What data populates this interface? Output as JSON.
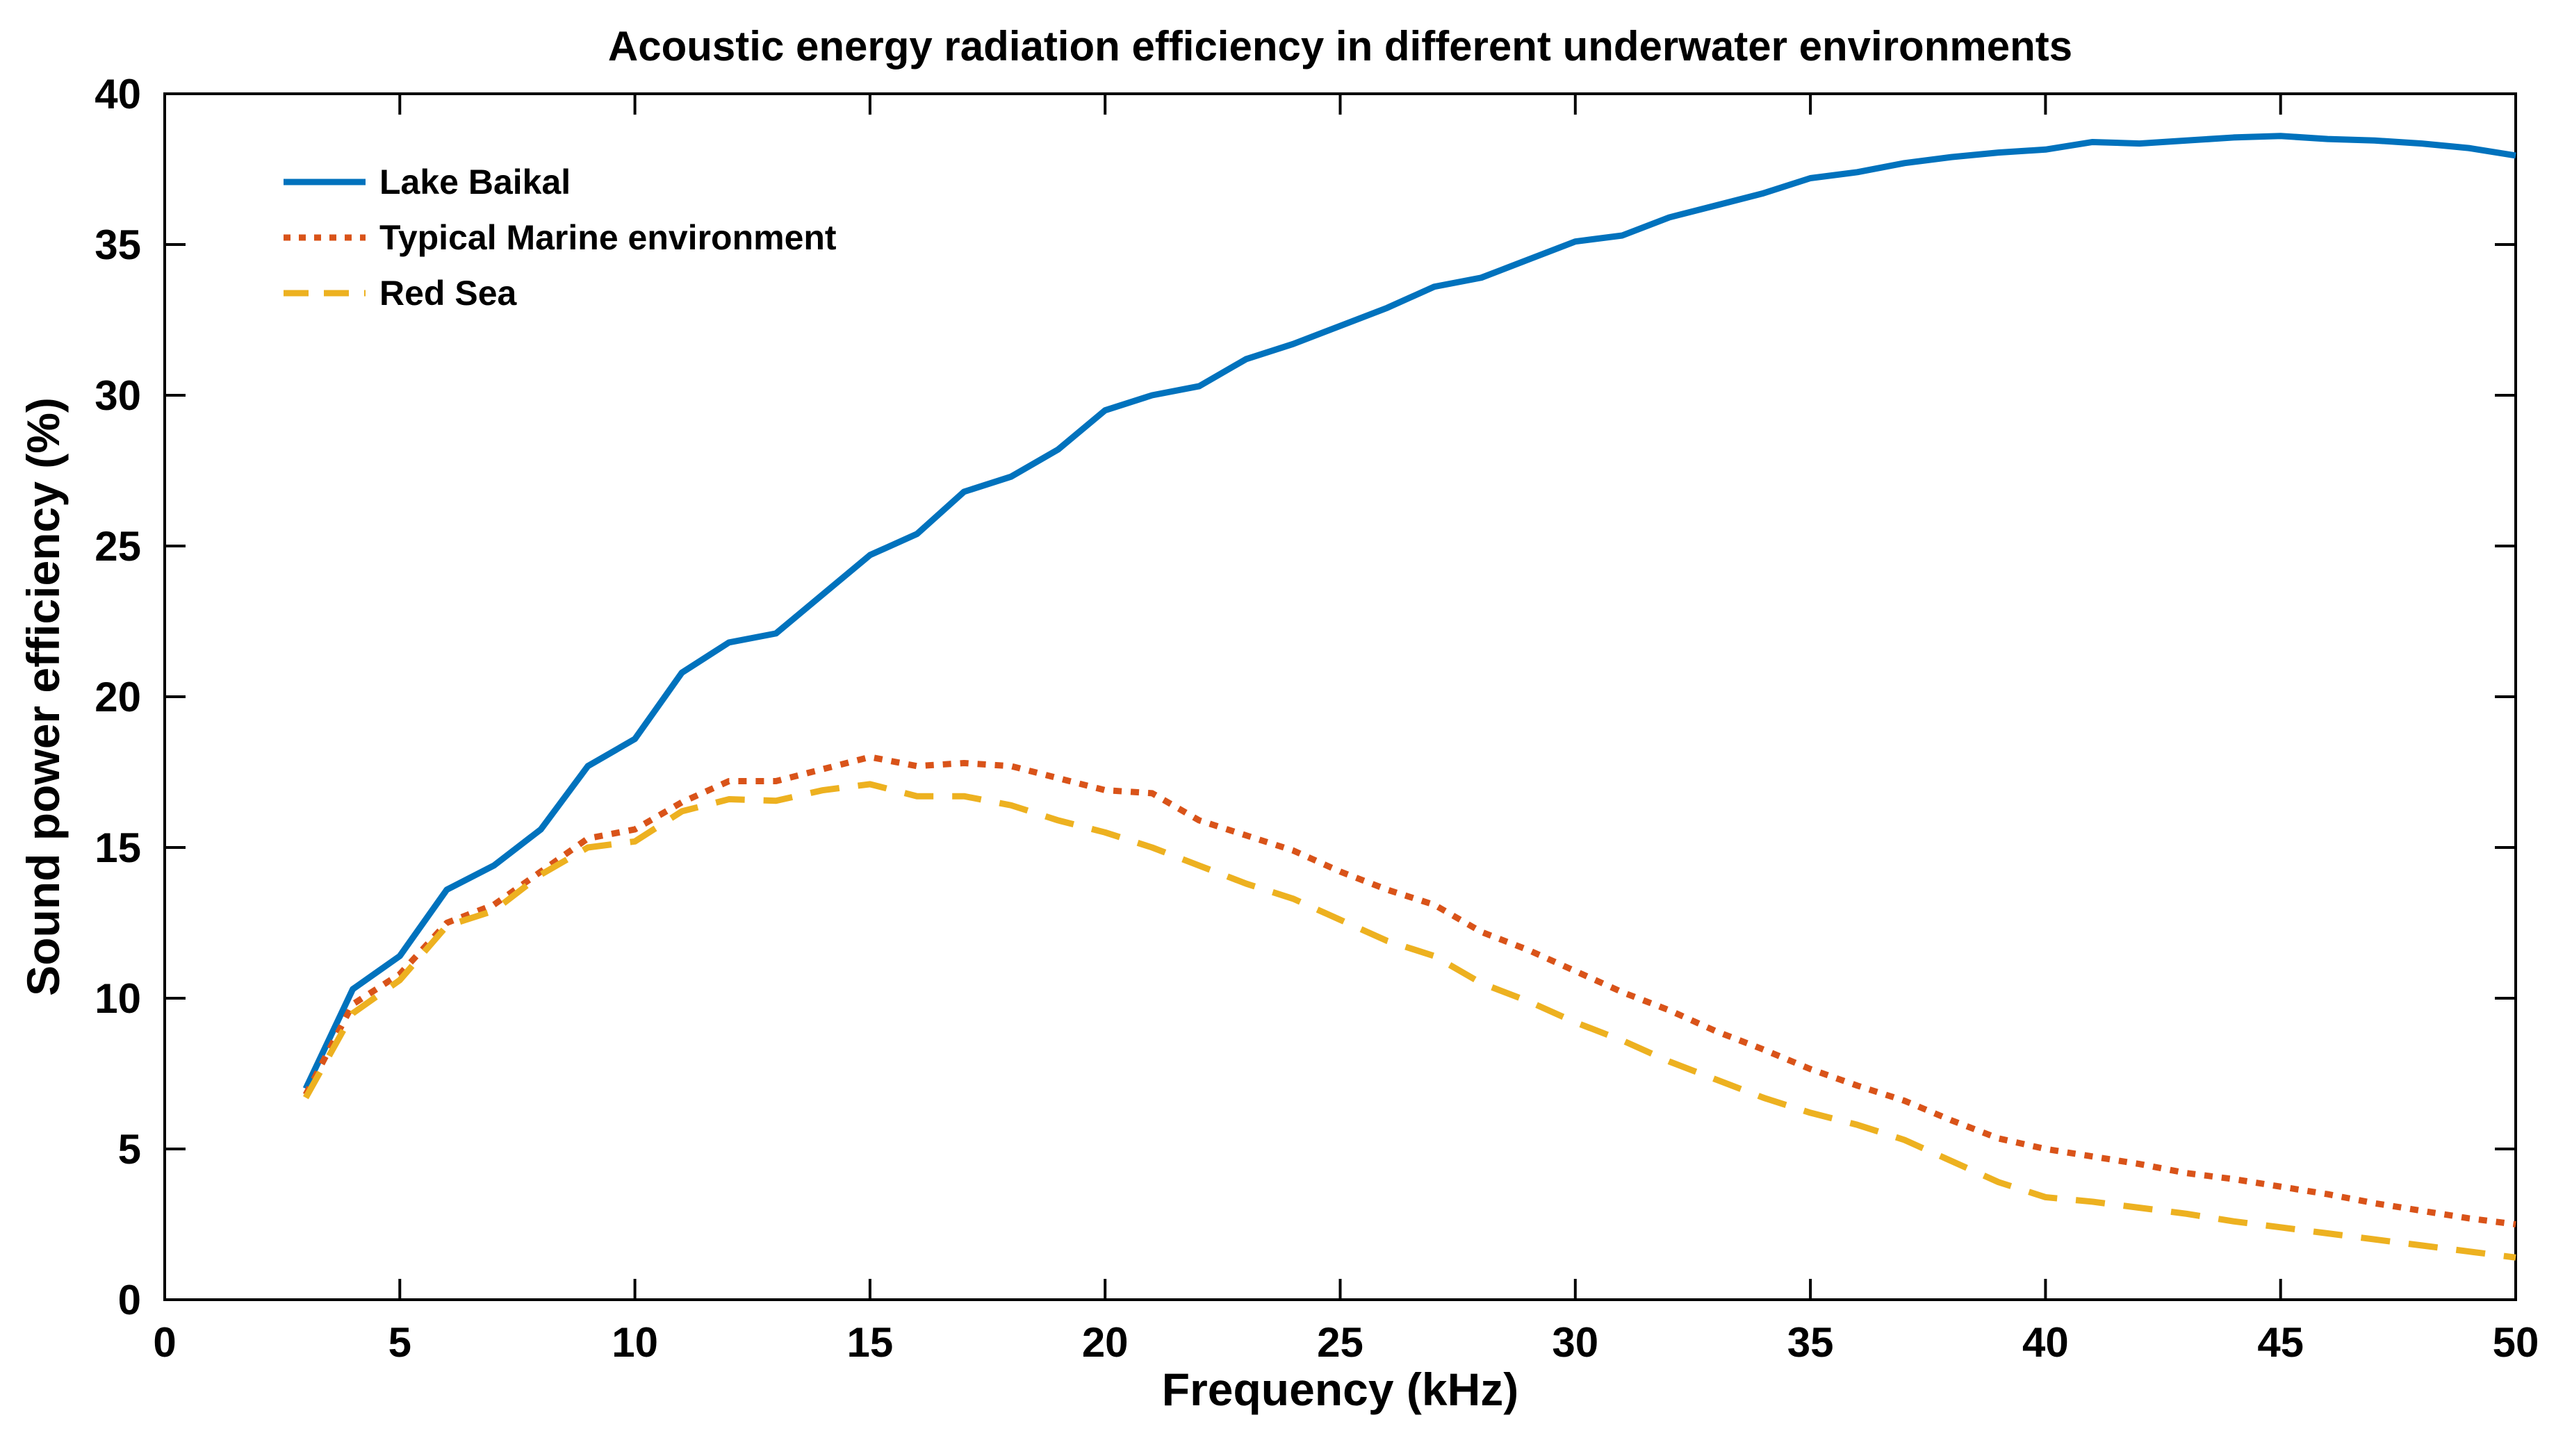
{
  "chart_data": {
    "type": "line",
    "title": "Acoustic energy radiation efficiency in different underwater environments",
    "xlabel": "Frequency (kHz)",
    "ylabel": "Sound power efficiency (%)",
    "xlim": [
      0,
      50
    ],
    "ylim": [
      0,
      40
    ],
    "xticks": [
      0,
      5,
      10,
      15,
      20,
      25,
      30,
      35,
      40,
      45,
      50
    ],
    "yticks": [
      0,
      5,
      10,
      15,
      20,
      25,
      30,
      35,
      40
    ],
    "grid": false,
    "box": true,
    "tick_direction": "in",
    "legend_position": "top-left",
    "x": [
      3,
      4,
      5,
      6,
      7,
      8,
      9,
      10,
      11,
      12,
      13,
      14,
      15,
      16,
      17,
      18,
      19,
      20,
      21,
      22,
      23,
      24,
      25,
      26,
      27,
      28,
      29,
      30,
      31,
      32,
      33,
      34,
      35,
      36,
      37,
      38,
      39,
      40,
      41,
      42,
      43,
      44,
      45,
      46,
      47,
      48,
      49,
      50
    ],
    "series": [
      {
        "name": "Lake Baikal",
        "color": "#0072BD",
        "style": "solid",
        "values": [
          7.0,
          10.3,
          11.4,
          13.6,
          14.4,
          15.6,
          17.7,
          18.6,
          20.8,
          21.8,
          22.1,
          23.4,
          24.7,
          25.4,
          26.8,
          27.3,
          28.2,
          29.5,
          30.0,
          30.3,
          31.2,
          31.7,
          32.3,
          32.9,
          33.6,
          33.9,
          34.5,
          35.1,
          35.3,
          35.9,
          36.3,
          36.7,
          37.2,
          37.4,
          37.7,
          37.9,
          38.05,
          38.15,
          38.4,
          38.35,
          38.45,
          38.55,
          38.6,
          38.5,
          38.45,
          38.35,
          38.2,
          37.95
        ]
      },
      {
        "name": "Typical Marine environment",
        "color": "#D95319",
        "style": "dotted",
        "values": [
          6.8,
          9.8,
          10.8,
          12.5,
          13.1,
          14.2,
          15.3,
          15.6,
          16.5,
          17.2,
          17.2,
          17.6,
          18.0,
          17.7,
          17.8,
          17.7,
          17.3,
          16.9,
          16.8,
          15.9,
          15.4,
          14.9,
          14.2,
          13.6,
          13.1,
          12.2,
          11.6,
          10.9,
          10.2,
          9.6,
          8.9,
          8.3,
          7.65,
          7.1,
          6.6,
          5.95,
          5.35,
          5.0,
          4.75,
          4.5,
          4.2,
          4.0,
          3.75,
          3.5,
          3.2,
          2.95,
          2.7,
          2.5
        ]
      },
      {
        "name": "Red Sea",
        "color": "#EDB120",
        "style": "dashed",
        "values": [
          6.7,
          9.5,
          10.6,
          12.4,
          12.9,
          14.1,
          15.0,
          15.2,
          16.2,
          16.6,
          16.55,
          16.9,
          17.1,
          16.7,
          16.7,
          16.4,
          15.9,
          15.5,
          15.0,
          14.4,
          13.8,
          13.3,
          12.6,
          11.9,
          11.4,
          10.5,
          9.9,
          9.2,
          8.6,
          7.9,
          7.3,
          6.7,
          6.2,
          5.8,
          5.3,
          4.6,
          3.9,
          3.4,
          3.25,
          3.05,
          2.85,
          2.6,
          2.4,
          2.2,
          2.0,
          1.8,
          1.6,
          1.4
        ]
      }
    ],
    "axis_color": "#000000",
    "text_color": "#000000"
  }
}
